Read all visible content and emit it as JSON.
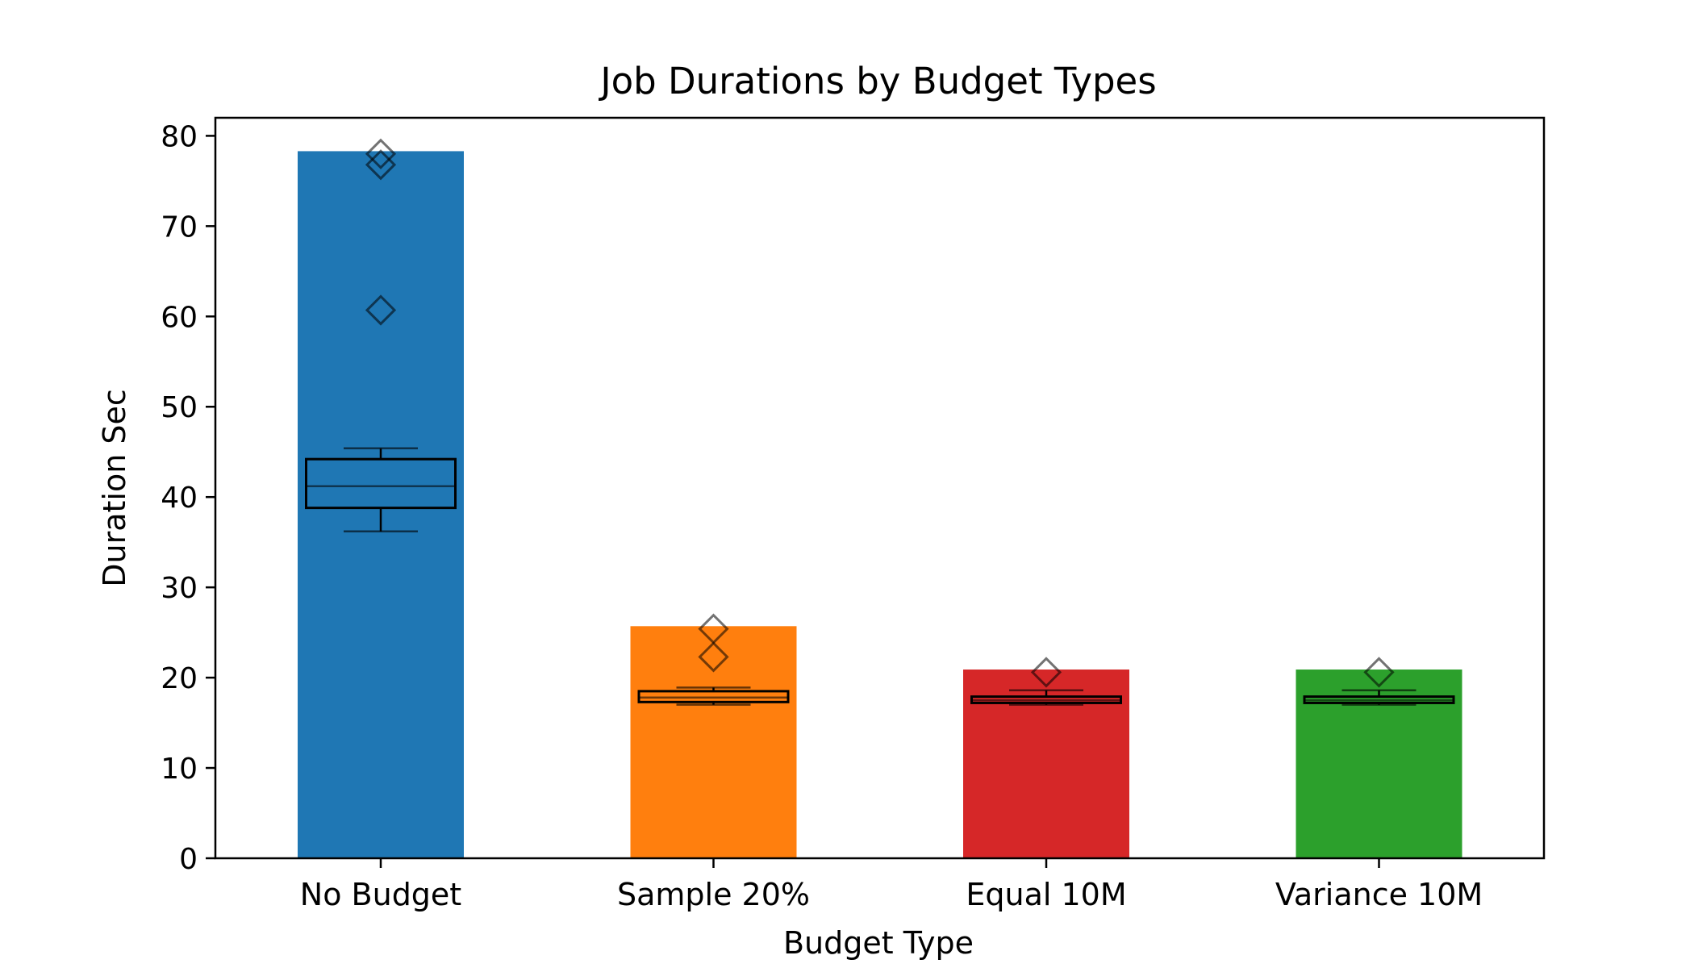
{
  "chart_data": {
    "type": "bar",
    "title": "Job Durations by Budget Types",
    "xlabel": "Budget Type",
    "ylabel": "Duration Sec",
    "ylim": [
      0,
      82
    ],
    "yticks": [
      0,
      10,
      20,
      30,
      40,
      50,
      60,
      70,
      80
    ],
    "grid": false,
    "categories": [
      "No Budget",
      "Sample 20%",
      "Equal 10M",
      "Variance 10M"
    ],
    "values": [
      78.3,
      25.7,
      20.9,
      20.9
    ],
    "colors": [
      "#1f77b4",
      "#ff7f0e",
      "#d62728",
      "#2ca02c"
    ],
    "boxplots": [
      {
        "whisker_low": 36.2,
        "q1": 38.8,
        "median": 41.2,
        "q3": 44.2,
        "whisker_high": 45.4,
        "outliers": [
          60.7,
          76.8,
          78.0
        ]
      },
      {
        "whisker_low": 17.0,
        "q1": 17.3,
        "median": 17.8,
        "q3": 18.5,
        "whisker_high": 18.9,
        "outliers": [
          22.3,
          25.4
        ]
      },
      {
        "whisker_low": 17.0,
        "q1": 17.2,
        "median": 17.5,
        "q3": 17.9,
        "whisker_high": 18.6,
        "outliers": [
          20.6
        ]
      },
      {
        "whisker_low": 17.0,
        "q1": 17.2,
        "median": 17.5,
        "q3": 17.9,
        "whisker_high": 18.6,
        "outliers": [
          20.6
        ]
      }
    ]
  }
}
